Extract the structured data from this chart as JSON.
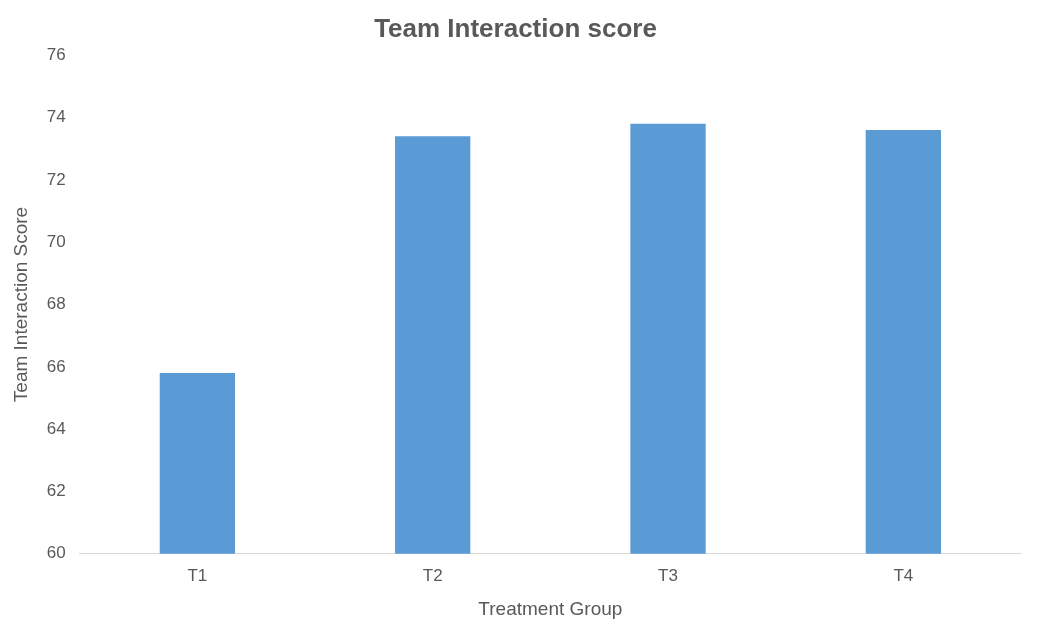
{
  "chart_data": {
    "type": "bar",
    "title": "Team Interaction score",
    "xlabel": "Treatment Group",
    "ylabel": "Team Interaction Score",
    "categories": [
      "T1",
      "T2",
      "T3",
      "T4"
    ],
    "values": [
      65.8,
      73.4,
      73.8,
      73.6
    ],
    "color": "#5b9bd5",
    "ylim": [
      60,
      76
    ],
    "yticks": [
      60,
      62,
      64,
      66,
      68,
      70,
      72,
      74,
      76
    ],
    "grid": false,
    "legend": false
  }
}
